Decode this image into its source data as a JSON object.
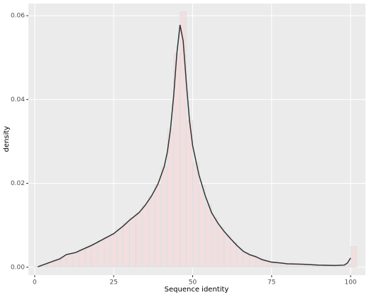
{
  "chart_data": {
    "type": "histogram",
    "xlabel": "Sequence identity",
    "ylabel": "density",
    "bins": [
      0,
      2,
      4,
      6,
      8,
      10,
      12,
      14,
      16,
      18,
      20,
      22,
      24,
      26,
      28,
      30,
      32,
      34,
      36,
      38,
      40,
      42,
      44,
      46,
      48,
      50,
      52,
      54,
      56,
      58,
      60,
      62,
      64,
      66,
      68,
      70,
      72,
      74,
      76,
      78,
      80,
      82,
      84,
      86,
      88,
      90,
      92,
      94,
      96,
      98,
      100,
      102
    ],
    "values": [
      0.0002,
      0.0006,
      0.0012,
      0.0018,
      0.0025,
      0.0031,
      0.0035,
      0.0042,
      0.0049,
      0.0056,
      0.0064,
      0.0072,
      0.008,
      0.0092,
      0.0105,
      0.0118,
      0.013,
      0.0148,
      0.017,
      0.0198,
      0.024,
      0.033,
      0.051,
      0.061,
      0.035,
      0.025,
      0.0195,
      0.015,
      0.0118,
      0.0095,
      0.0076,
      0.006,
      0.0045,
      0.0034,
      0.0027,
      0.0021,
      0.0016,
      0.0012,
      0.001,
      0.0009,
      0.0008,
      0.0008,
      0.0007,
      0.0006,
      0.0005,
      0.0005,
      0.0004,
      0.0004,
      0.0004,
      0.0008,
      0.005
    ],
    "color": "#f2dede",
    "edge_color": "#bfe6ea",
    "density": {
      "color": "#333333",
      "x": [
        1,
        5,
        8,
        10,
        13,
        15,
        18,
        20,
        22,
        25,
        28,
        30,
        33,
        35,
        37,
        39,
        41,
        42,
        43,
        44,
        45,
        46,
        47,
        48,
        49,
        50,
        52,
        54,
        56,
        58,
        60,
        62,
        64,
        66,
        68,
        70,
        72,
        75,
        78,
        80,
        85,
        90,
        95,
        98,
        99,
        100
      ],
      "values": [
        0.0001,
        0.0012,
        0.002,
        0.003,
        0.0035,
        0.0042,
        0.0052,
        0.006,
        0.0068,
        0.008,
        0.0098,
        0.0112,
        0.013,
        0.0148,
        0.017,
        0.0198,
        0.024,
        0.0275,
        0.033,
        0.041,
        0.051,
        0.0578,
        0.054,
        0.044,
        0.035,
        0.029,
        0.022,
        0.017,
        0.013,
        0.0105,
        0.0085,
        0.0068,
        0.0052,
        0.0038,
        0.003,
        0.0025,
        0.0018,
        0.0012,
        0.001,
        0.0008,
        0.0007,
        0.0005,
        0.0004,
        0.0005,
        0.001,
        0.0022
      ]
    },
    "xlim": [
      -2,
      104.7
    ],
    "ylim": [
      -0.0019,
      0.0629
    ],
    "xticks": [
      0,
      25,
      50,
      75,
      100
    ],
    "yticks": [
      {
        "value": 0,
        "label": "0.00"
      },
      {
        "value": 0.02,
        "label": "0.02"
      },
      {
        "value": 0.04,
        "label": "0.04"
      },
      {
        "value": 0.06,
        "label": "0.06"
      }
    ],
    "grid": true
  }
}
